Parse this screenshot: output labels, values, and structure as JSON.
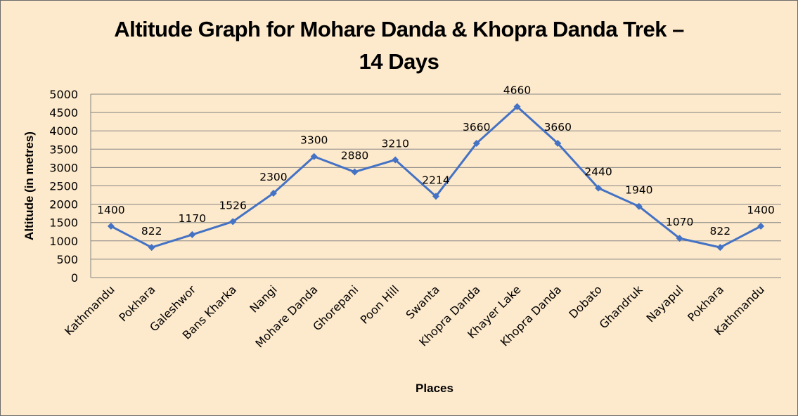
{
  "title_line1": "Altitude Graph for Mohare Danda & Khopra Danda Trek –",
  "title_line2": "14 Days",
  "chart_data": {
    "type": "line",
    "title": "Altitude Graph for Mohare Danda & Khopra Danda Trek – 14 Days",
    "xlabel": "Places",
    "ylabel": "Altitude (in metres)",
    "ylim": [
      0,
      5000
    ],
    "yticks": [
      0,
      500,
      1000,
      1500,
      2000,
      2500,
      3000,
      3500,
      4000,
      4500,
      5000
    ],
    "grid": true,
    "legend": "none",
    "categories": [
      "Kathmandu",
      "Pokhara",
      "Galeshwor",
      "Bans Kharka",
      "Nangi",
      "Mohare Danda",
      "Ghorepani",
      "Poon Hill",
      "Swanta",
      "Khopra Danda",
      "Khayer Lake",
      "Khopra Danda",
      "Dobato",
      "Ghandruk",
      "Nayapul",
      "Pokhara",
      "Kathmandu"
    ],
    "series": [
      {
        "name": "Altitude",
        "color": "#4472c4",
        "marker": "diamond",
        "values": [
          1400,
          822,
          1170,
          1526,
          2300,
          3300,
          2880,
          3210,
          2214,
          3660,
          4660,
          3660,
          2440,
          1940,
          1070,
          822,
          1400
        ]
      }
    ]
  },
  "colors": {
    "background": "#fde9cb",
    "line": "#4472c4",
    "grid": "#868686"
  }
}
